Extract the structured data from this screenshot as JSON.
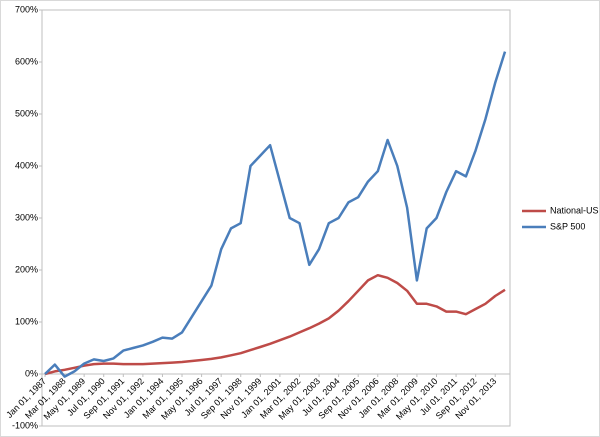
{
  "chart_data": {
    "type": "line",
    "categories": [
      "Jan 01, 1987",
      null,
      "Mar 01, 1988",
      null,
      "May 01, 1989",
      null,
      "Jul 01, 1990",
      null,
      "Sep 01, 1991",
      null,
      "Nov 01, 1992",
      null,
      "Jan 01, 1994",
      null,
      "Mar 01, 1995",
      null,
      "May 01, 1996",
      null,
      "Jul 01, 1997",
      null,
      "Sep 01, 1998",
      null,
      "Nov 01, 1999",
      null,
      "Jan 01, 2001",
      null,
      "Mar 01, 2002",
      null,
      "May 01, 2003",
      null,
      "Jul 01, 2004",
      null,
      "Sep 01, 2005",
      null,
      "Nov 01, 2006",
      null,
      "Jan 01, 2008",
      null,
      "Mar 01, 2009",
      null,
      "May 01, 2010",
      null,
      "Jul 01, 2011",
      null,
      "Sep 01, 2012",
      null,
      "Nov 01, 2013",
      null
    ],
    "series": [
      {
        "name": "National-US",
        "color": "#be4b48",
        "values": [
          0,
          5,
          8,
          12,
          16,
          19,
          20,
          20,
          19,
          19,
          19,
          20,
          21,
          22,
          23,
          25,
          27,
          29,
          32,
          36,
          40,
          46,
          52,
          58,
          65,
          72,
          80,
          88,
          97,
          107,
          122,
          140,
          160,
          180,
          190,
          185,
          175,
          160,
          135,
          135,
          130,
          120,
          120,
          115,
          125,
          135,
          150,
          162
        ]
      },
      {
        "name": "S&P 500",
        "color": "#4a7ebb",
        "values": [
          0,
          18,
          -5,
          5,
          20,
          28,
          25,
          30,
          45,
          50,
          55,
          62,
          70,
          68,
          80,
          110,
          140,
          170,
          240,
          280,
          290,
          400,
          420,
          440,
          370,
          300,
          290,
          210,
          240,
          290,
          300,
          330,
          340,
          370,
          390,
          450,
          400,
          320,
          180,
          280,
          300,
          350,
          390,
          380,
          430,
          490,
          560,
          620
        ]
      }
    ],
    "ylim": [
      -100,
      700
    ],
    "yticks": [
      {
        "value": -100,
        "label": "-100%"
      },
      {
        "value": 0,
        "label": "0%"
      },
      {
        "value": 100,
        "label": "100%"
      },
      {
        "value": 200,
        "label": "200%"
      },
      {
        "value": 300,
        "label": "300%"
      },
      {
        "value": 400,
        "label": "400%"
      },
      {
        "value": 500,
        "label": "500%"
      },
      {
        "value": 600,
        "label": "600%"
      },
      {
        "value": 700,
        "label": "700%"
      }
    ],
    "grid": false,
    "legend": "right"
  }
}
